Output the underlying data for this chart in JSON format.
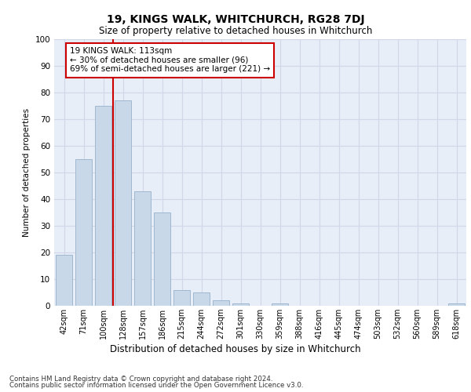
{
  "title": "19, KINGS WALK, WHITCHURCH, RG28 7DJ",
  "subtitle": "Size of property relative to detached houses in Whitchurch",
  "xlabel": "Distribution of detached houses by size in Whitchurch",
  "ylabel": "Number of detached properties",
  "categories": [
    "42sqm",
    "71sqm",
    "100sqm",
    "128sqm",
    "157sqm",
    "186sqm",
    "215sqm",
    "244sqm",
    "272sqm",
    "301sqm",
    "330sqm",
    "359sqm",
    "388sqm",
    "416sqm",
    "445sqm",
    "474sqm",
    "503sqm",
    "532sqm",
    "560sqm",
    "589sqm",
    "618sqm"
  ],
  "values": [
    19,
    55,
    75,
    77,
    43,
    35,
    6,
    5,
    2,
    1,
    0,
    1,
    0,
    0,
    0,
    0,
    0,
    0,
    0,
    0,
    1
  ],
  "bar_color": "#c8d8e8",
  "bar_edge_color": "#a0b8d0",
  "grid_color": "#d0d8e8",
  "background_color": "#e8eef8",
  "red_line_x": 2.5,
  "annotation_text": "19 KINGS WALK: 113sqm\n← 30% of detached houses are smaller (96)\n69% of semi-detached houses are larger (221) →",
  "annotation_box_color": "#ffffff",
  "annotation_box_edge": "#cc0000",
  "red_line_color": "#cc0000",
  "ylim": [
    0,
    100
  ],
  "yticks": [
    0,
    10,
    20,
    30,
    40,
    50,
    60,
    70,
    80,
    90,
    100
  ],
  "footer_line1": "Contains HM Land Registry data © Crown copyright and database right 2024.",
  "footer_line2": "Contains public sector information licensed under the Open Government Licence v3.0."
}
